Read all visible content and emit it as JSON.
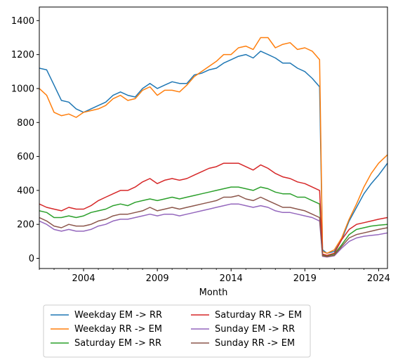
{
  "chart_data": {
    "type": "line",
    "title": "",
    "xlabel": "Month",
    "ylabel": "",
    "xlim": [
      2001.0,
      2024.6
    ],
    "ylim": [
      -60,
      1480
    ],
    "x_ticks": [
      2004,
      2009,
      2014,
      2019,
      2024
    ],
    "x_tick_labels": [
      "2004",
      "2009",
      "2014",
      "2019",
      "2024"
    ],
    "y_ticks": [
      0,
      200,
      400,
      600,
      800,
      1000,
      1200,
      1400
    ],
    "y_tick_labels": [
      "0",
      "200",
      "400",
      "600",
      "800",
      "1000",
      "1200",
      "1400"
    ],
    "grid": false,
    "legend": {
      "placement": "below-plot",
      "columns": 2
    },
    "x": [
      2001.0,
      2001.5,
      2002.0,
      2002.5,
      2003.0,
      2003.5,
      2004.0,
      2004.5,
      2005.0,
      2005.5,
      2006.0,
      2006.5,
      2007.0,
      2007.5,
      2008.0,
      2008.5,
      2009.0,
      2009.5,
      2010.0,
      2010.5,
      2011.0,
      2011.5,
      2012.0,
      2012.5,
      2013.0,
      2013.5,
      2014.0,
      2014.5,
      2015.0,
      2015.5,
      2016.0,
      2016.5,
      2017.0,
      2017.5,
      2018.0,
      2018.5,
      2019.0,
      2019.5,
      2020.0,
      2020.2,
      2020.5,
      2021.0,
      2021.5,
      2022.0,
      2022.5,
      2023.0,
      2023.5,
      2024.0,
      2024.6
    ],
    "series": [
      {
        "name": "Weekday EM -> RR",
        "color": "#1f77b4",
        "values": [
          1120,
          1110,
          1020,
          930,
          920,
          880,
          860,
          880,
          900,
          920,
          960,
          980,
          960,
          950,
          1000,
          1030,
          1000,
          1020,
          1040,
          1030,
          1030,
          1080,
          1090,
          1110,
          1120,
          1150,
          1170,
          1190,
          1200,
          1180,
          1220,
          1200,
          1180,
          1150,
          1150,
          1120,
          1100,
          1060,
          1010,
          50,
          30,
          40,
          110,
          220,
          300,
          380,
          440,
          490,
          560
        ]
      },
      {
        "name": "Weekday RR -> EM",
        "color": "#ff7f0e",
        "values": [
          1000,
          960,
          860,
          840,
          850,
          830,
          860,
          870,
          880,
          900,
          940,
          960,
          930,
          940,
          990,
          1010,
          960,
          990,
          990,
          980,
          1020,
          1070,
          1100,
          1130,
          1160,
          1200,
          1200,
          1240,
          1250,
          1230,
          1300,
          1300,
          1240,
          1260,
          1270,
          1230,
          1240,
          1220,
          1170,
          40,
          30,
          50,
          120,
          230,
          320,
          420,
          500,
          560,
          610
        ]
      },
      {
        "name": "Saturday EM -> RR",
        "color": "#2ca02c",
        "values": [
          280,
          270,
          240,
          240,
          250,
          240,
          250,
          270,
          280,
          290,
          310,
          320,
          310,
          330,
          340,
          350,
          340,
          350,
          360,
          350,
          360,
          370,
          380,
          390,
          400,
          410,
          420,
          420,
          410,
          400,
          420,
          410,
          390,
          380,
          380,
          360,
          360,
          340,
          320,
          20,
          15,
          25,
          80,
          140,
          170,
          180,
          190,
          195,
          200
        ]
      },
      {
        "name": "Saturday RR -> EM",
        "color": "#d62728",
        "values": [
          320,
          300,
          290,
          280,
          300,
          290,
          290,
          310,
          340,
          360,
          380,
          400,
          400,
          420,
          450,
          470,
          440,
          460,
          470,
          460,
          470,
          490,
          510,
          530,
          540,
          560,
          560,
          560,
          540,
          520,
          550,
          530,
          500,
          480,
          470,
          450,
          440,
          420,
          400,
          25,
          18,
          30,
          110,
          170,
          200,
          210,
          220,
          230,
          240
        ]
      },
      {
        "name": "Sunday EM -> RR",
        "color": "#9467bd",
        "values": [
          220,
          200,
          170,
          160,
          170,
          160,
          160,
          170,
          190,
          200,
          220,
          230,
          230,
          240,
          250,
          260,
          250,
          260,
          260,
          250,
          260,
          270,
          280,
          290,
          300,
          310,
          320,
          320,
          310,
          300,
          310,
          300,
          280,
          270,
          270,
          260,
          250,
          240,
          220,
          12,
          8,
          15,
          60,
          100,
          120,
          130,
          135,
          140,
          150
        ]
      },
      {
        "name": "Sunday RR -> EM",
        "color": "#8c564b",
        "values": [
          240,
          220,
          190,
          180,
          200,
          190,
          190,
          200,
          220,
          230,
          250,
          260,
          260,
          270,
          280,
          300,
          280,
          290,
          300,
          290,
          300,
          310,
          320,
          330,
          340,
          360,
          360,
          370,
          350,
          340,
          360,
          340,
          320,
          300,
          300,
          290,
          280,
          260,
          240,
          15,
          10,
          18,
          70,
          120,
          140,
          150,
          160,
          170,
          180
        ]
      }
    ]
  }
}
